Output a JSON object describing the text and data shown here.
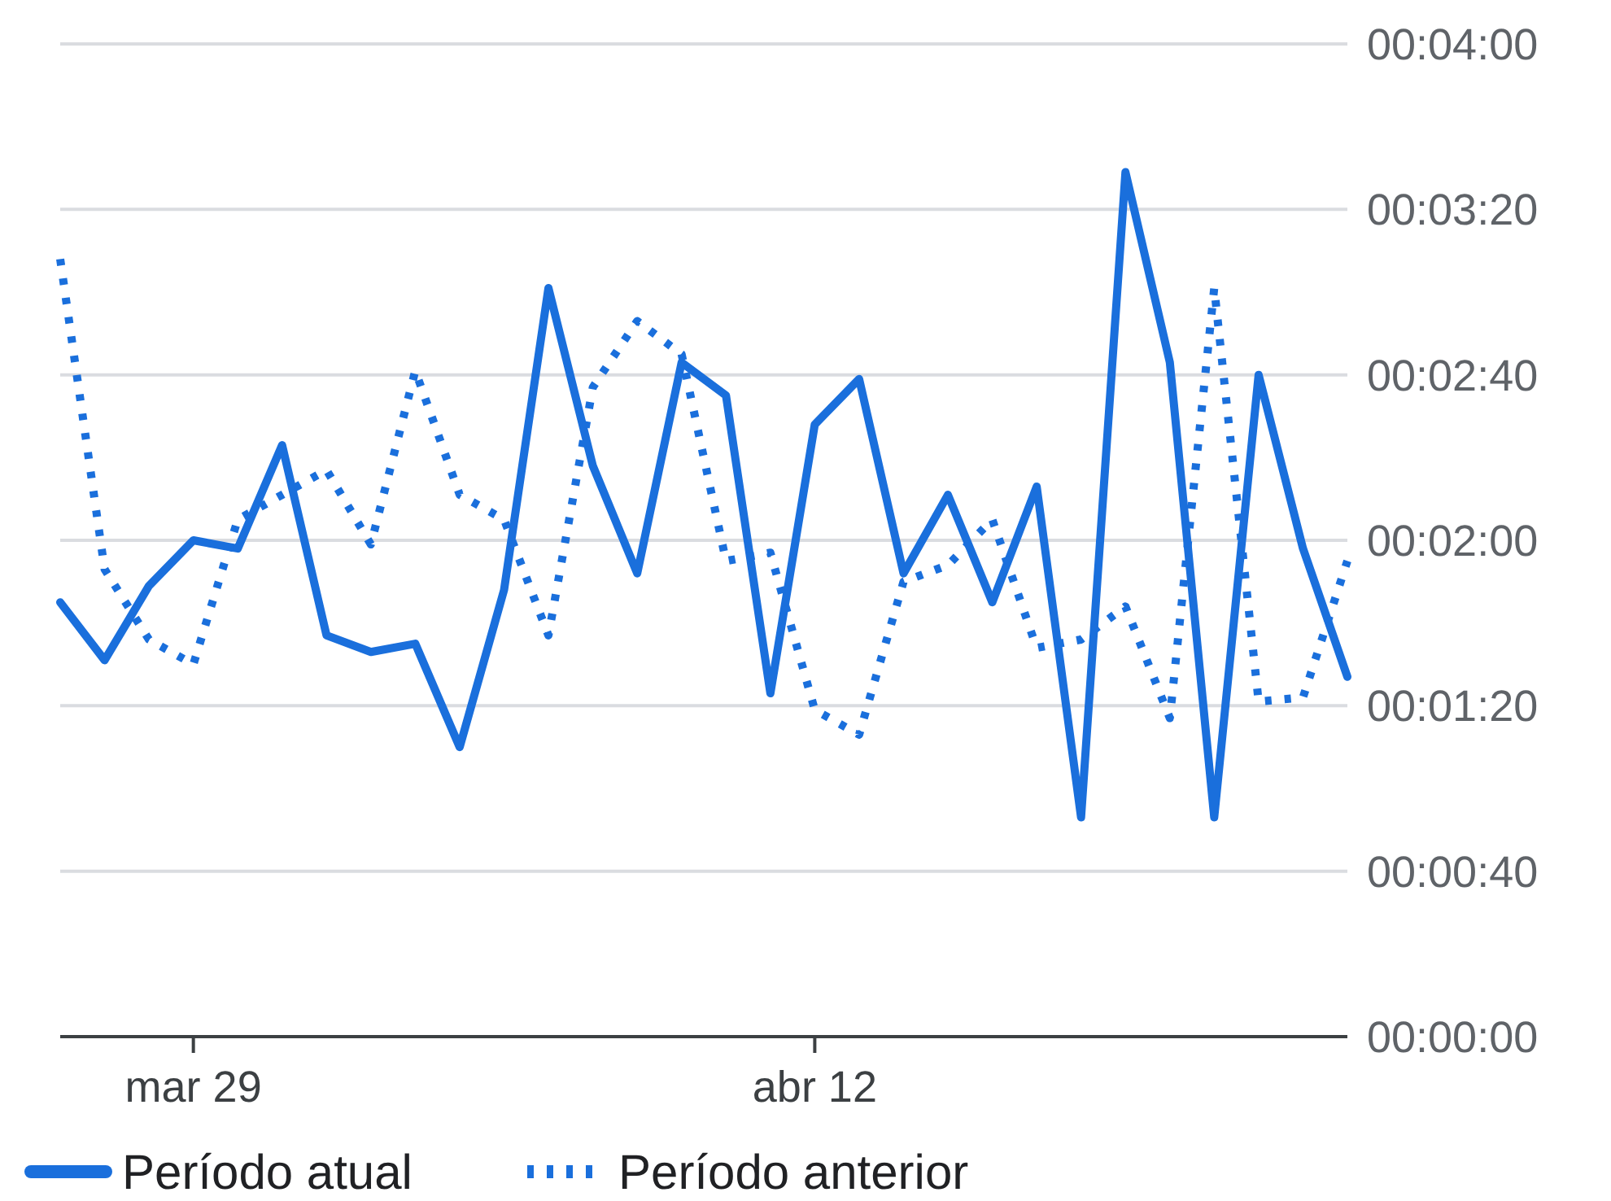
{
  "chart_data": {
    "type": "line",
    "x": [
      "--03-26",
      "--03-27",
      "--03-28",
      "--03-29",
      "--03-30",
      "--03-31",
      "--04-01",
      "--04-02",
      "--04-03",
      "--04-04",
      "--04-05",
      "--04-06",
      "--04-07",
      "--04-08",
      "--04-09",
      "--04-10",
      "--04-11",
      "--04-12",
      "--04-13",
      "--04-14",
      "--04-15",
      "--04-16",
      "--04-17",
      "--04-18",
      "--04-19",
      "--04-20",
      "--04-21",
      "--04-22",
      "--04-23",
      "--04-24"
    ],
    "series": [
      {
        "name": "Período atual",
        "color": "#1a6fdc",
        "line_style": "solid",
        "values": [
          105,
          91,
          109,
          120,
          118,
          143,
          97,
          93,
          95,
          70,
          108,
          181,
          138,
          112,
          163,
          155,
          83,
          148,
          159,
          112,
          131,
          105,
          133,
          53,
          209,
          163,
          53,
          160,
          118,
          87
        ]
      },
      {
        "name": "Período anterior",
        "color": "#1a6fdc",
        "line_style": "dotted",
        "values": [
          188,
          113,
          96,
          90,
          125,
          131,
          137,
          119,
          161,
          131,
          125,
          97,
          157,
          173,
          165,
          115,
          117,
          79,
          73,
          110,
          114,
          125,
          94,
          96,
          104,
          77,
          181,
          81,
          82,
          115
        ]
      }
    ],
    "xlim": [
      "--03-26",
      "--04-24"
    ],
    "xticks": [
      {
        "value": "--03-29",
        "label": "mar 29"
      },
      {
        "value": "--04-12",
        "label": "abr 12"
      }
    ],
    "ylim": [
      0,
      240
    ],
    "yticks": [
      {
        "value": 0,
        "label": "00:00:00"
      },
      {
        "value": 40,
        "label": "00:00:40"
      },
      {
        "value": 80,
        "label": "00:01:20"
      },
      {
        "value": 120,
        "label": "00:02:00"
      },
      {
        "value": 160,
        "label": "00:02:40"
      },
      {
        "value": 200,
        "label": "00:03:20"
      },
      {
        "value": 240,
        "label": "00:04:00"
      }
    ],
    "grid": "y",
    "legend": "bottom",
    "marker": "none"
  }
}
